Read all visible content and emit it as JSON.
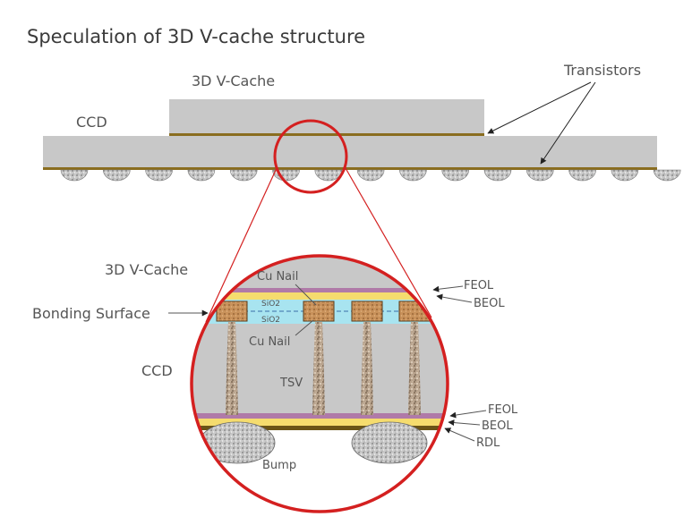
{
  "title": "Speculation of 3D V-cache structure",
  "top": {
    "vcache_label": "3D V-Cache",
    "ccd_label": "CCD",
    "transistors_label": "Transistors"
  },
  "zoom": {
    "vcache_label": "3D V-Cache",
    "ccd_label": "CCD",
    "bonding_surface_label": "Bonding Surface",
    "cu_nail_top_label": "Cu Nail",
    "cu_nail_bottom_label": "Cu Nail",
    "sio2_top_label": "SiO2",
    "sio2_bottom_label": "SiO2",
    "tsv_label": "TSV",
    "bump_label": "Bump",
    "feol_top_label": "FEOL",
    "beol_top_label": "BEOL",
    "feol_bottom_label": "FEOL",
    "beol_bottom_label": "BEOL",
    "rdl_label": "RDL"
  },
  "colors": {
    "die_gray": "#c8c8c8",
    "transistor_line": "#8a6d1f",
    "circle_red": "#d42020",
    "feol_purple": "#b07aa8",
    "beol_yellow": "#f5dc6e",
    "sio2_cyan": "#a8e4f0",
    "cu_nail": "#c8915a"
  }
}
